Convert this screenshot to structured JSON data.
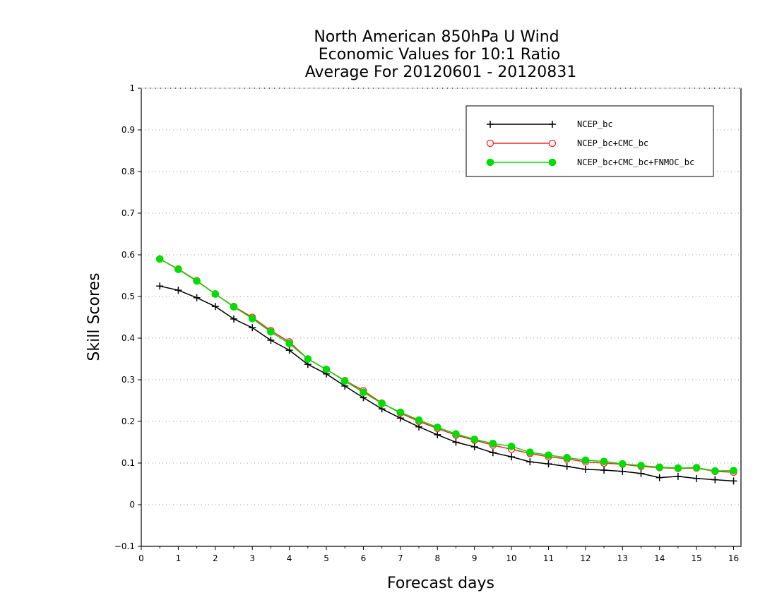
{
  "chart_data": {
    "type": "line",
    "title_lines": [
      "North American 850hPa U Wind",
      "Economic Values for 10:1 Ratio",
      "Average For 20120601 - 20120831"
    ],
    "xlabel": "Forecast days",
    "ylabel": "Skill Scores",
    "xlim": [
      0,
      16.2
    ],
    "ylim": [
      -0.1,
      1
    ],
    "x_ticks": [
      "0",
      "1",
      "2",
      "3",
      "4",
      "5",
      "6",
      "7",
      "8",
      "9",
      "10",
      "11",
      "12",
      "13",
      "14",
      "15",
      "16"
    ],
    "y_ticks": [
      "−0.1",
      "0",
      "0.1",
      "0.2",
      "0.3",
      "0.4",
      "0.5",
      "0.6",
      "0.7",
      "0.8",
      "0.9",
      "1"
    ],
    "grid": "horizontal dotted",
    "legend_position": "top-right",
    "x": [
      0.5,
      1,
      1.5,
      2,
      2.5,
      3,
      3.5,
      4,
      4.5,
      5,
      5.5,
      6,
      6.5,
      7,
      7.5,
      8,
      8.5,
      9,
      9.5,
      10,
      10.5,
      11,
      11.5,
      12,
      12.5,
      13,
      13.5,
      14,
      14.5,
      15,
      15.5,
      16
    ],
    "series": [
      {
        "name": "NCEP_bc",
        "color": "#000000",
        "marker": "plus",
        "values": [
          0.525,
          0.515,
          0.497,
          0.476,
          0.446,
          0.425,
          0.395,
          0.371,
          0.337,
          0.314,
          0.285,
          0.257,
          0.23,
          0.208,
          0.187,
          0.168,
          0.15,
          0.139,
          0.125,
          0.115,
          0.103,
          0.098,
          0.092,
          0.085,
          0.083,
          0.08,
          0.075,
          0.065,
          0.068,
          0.063,
          0.06,
          0.057
        ]
      },
      {
        "name": "NCEP_bc+CMC_bc",
        "color": "#ff2020",
        "marker": "open-circle",
        "values": [
          0.59,
          0.566,
          0.538,
          0.506,
          0.476,
          0.45,
          0.418,
          0.391,
          0.35,
          0.325,
          0.298,
          0.274,
          0.244,
          0.22,
          0.2,
          0.183,
          0.167,
          0.155,
          0.143,
          0.133,
          0.123,
          0.115,
          0.11,
          0.103,
          0.1,
          0.097,
          0.092,
          0.089,
          0.087,
          0.088,
          0.08,
          0.078
        ]
      },
      {
        "name": "NCEP_bc+CMC_bc+FNMOC_bc",
        "color": "#00dd00",
        "marker": "filled-circle",
        "values": [
          0.59,
          0.565,
          0.537,
          0.506,
          0.475,
          0.447,
          0.415,
          0.387,
          0.35,
          0.325,
          0.297,
          0.27,
          0.243,
          0.222,
          0.203,
          0.186,
          0.17,
          0.157,
          0.147,
          0.14,
          0.126,
          0.119,
          0.113,
          0.107,
          0.104,
          0.098,
          0.094,
          0.09,
          0.088,
          0.089,
          0.081,
          0.082
        ]
      }
    ]
  }
}
